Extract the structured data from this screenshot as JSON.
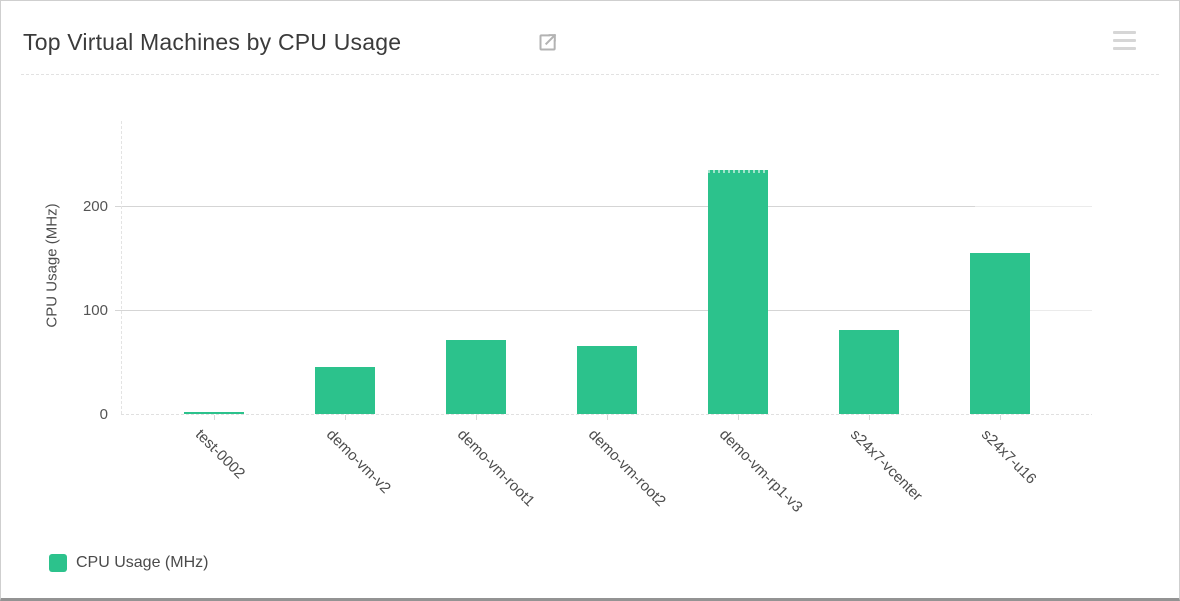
{
  "header": {
    "title": "Top Virtual Machines by CPU Usage"
  },
  "chart_data": {
    "type": "bar",
    "title": "Top Virtual Machines by CPU Usage",
    "categories": [
      "test-0002",
      "demo-vm-v2",
      "demo-vm-root1",
      "demo-vm-root2",
      "demo-vm-rp1-v3",
      "s24x7-vcenter",
      "s24x7-u16"
    ],
    "values": [
      2,
      45,
      71,
      65,
      235,
      81,
      155
    ],
    "series_name": "CPU Usage (MHz)",
    "xlabel": "",
    "ylabel": "CPU Usage (MHz)",
    "yticks": [
      0,
      100,
      200
    ],
    "ylim": [
      0,
      283
    ],
    "grid": "horizontal",
    "legend_position": "bottom-left",
    "bar_color": "#2cc28c"
  },
  "legend": {
    "items": [
      {
        "label": "CPU Usage (MHz)",
        "color": "#2cc28c"
      }
    ]
  },
  "icons": {
    "popout": "external-link-icon",
    "menu": "hamburger-menu-icon"
  }
}
